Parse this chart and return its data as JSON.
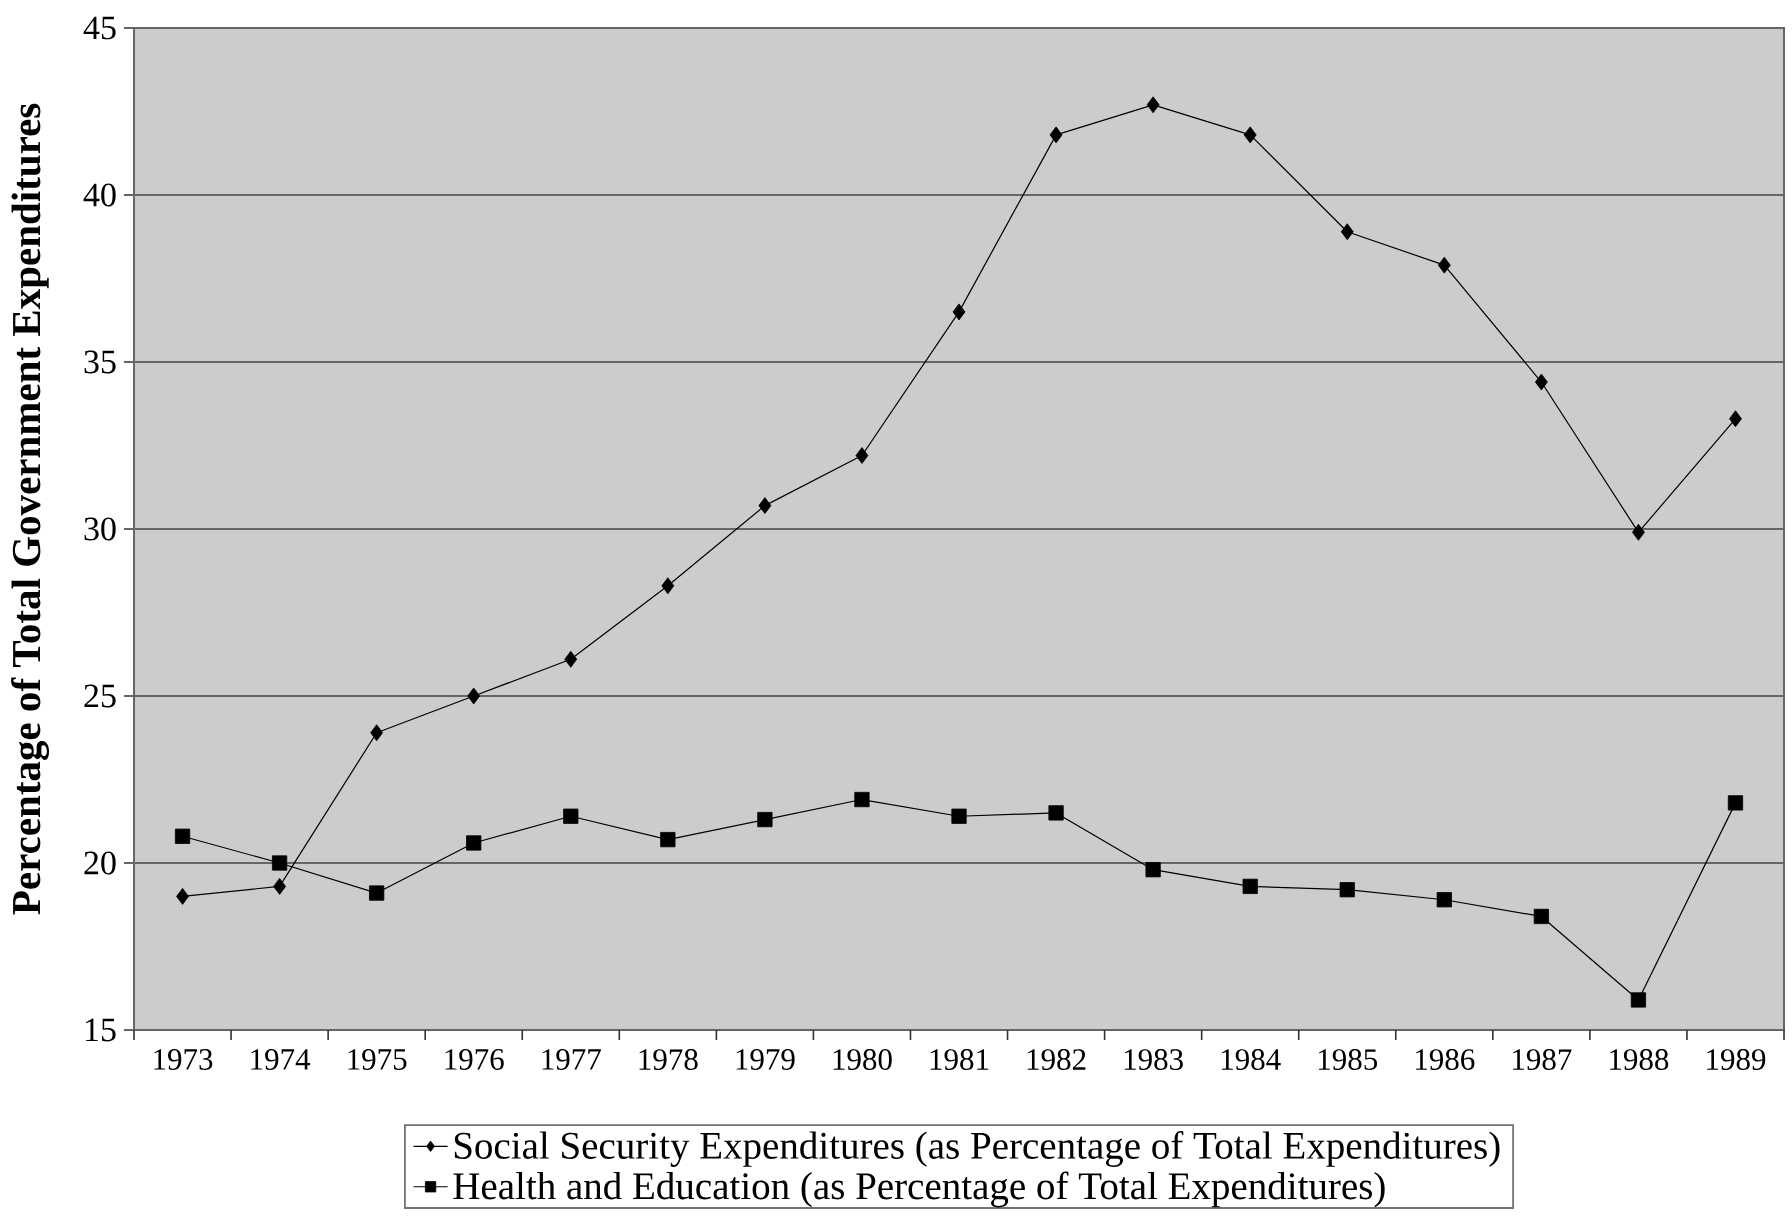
{
  "chart_data": {
    "type": "line",
    "ylabel": "Percentage of Total Government Expenditures",
    "categories": [
      "1973",
      "1974",
      "1975",
      "1976",
      "1977",
      "1978",
      "1979",
      "1980",
      "1981",
      "1982",
      "1983",
      "1984",
      "1985",
      "1986",
      "1987",
      "1988",
      "1989"
    ],
    "series": [
      {
        "name": "Social Security Expenditures (as Percentage of Total Expenditures)",
        "color": "#000000",
        "marker": "diamond",
        "values": [
          19.0,
          19.3,
          23.9,
          25.0,
          26.1,
          28.3,
          30.7,
          32.2,
          36.5,
          41.8,
          42.7,
          41.8,
          38.9,
          37.9,
          34.4,
          29.9,
          33.3
        ]
      },
      {
        "name": "Health and Education (as Percentage of Total Expenditures)",
        "color": "#000000",
        "marker": "square",
        "values": [
          20.8,
          20.0,
          19.1,
          20.6,
          21.4,
          20.7,
          21.3,
          21.9,
          21.4,
          21.5,
          19.8,
          19.3,
          19.2,
          18.9,
          18.4,
          15.9,
          21.8
        ]
      }
    ],
    "ylim": [
      15,
      45
    ],
    "yticks": [
      15,
      20,
      25,
      30,
      35,
      40,
      45
    ],
    "grid": "y",
    "legend": "bottom",
    "line_style": "solid"
  }
}
